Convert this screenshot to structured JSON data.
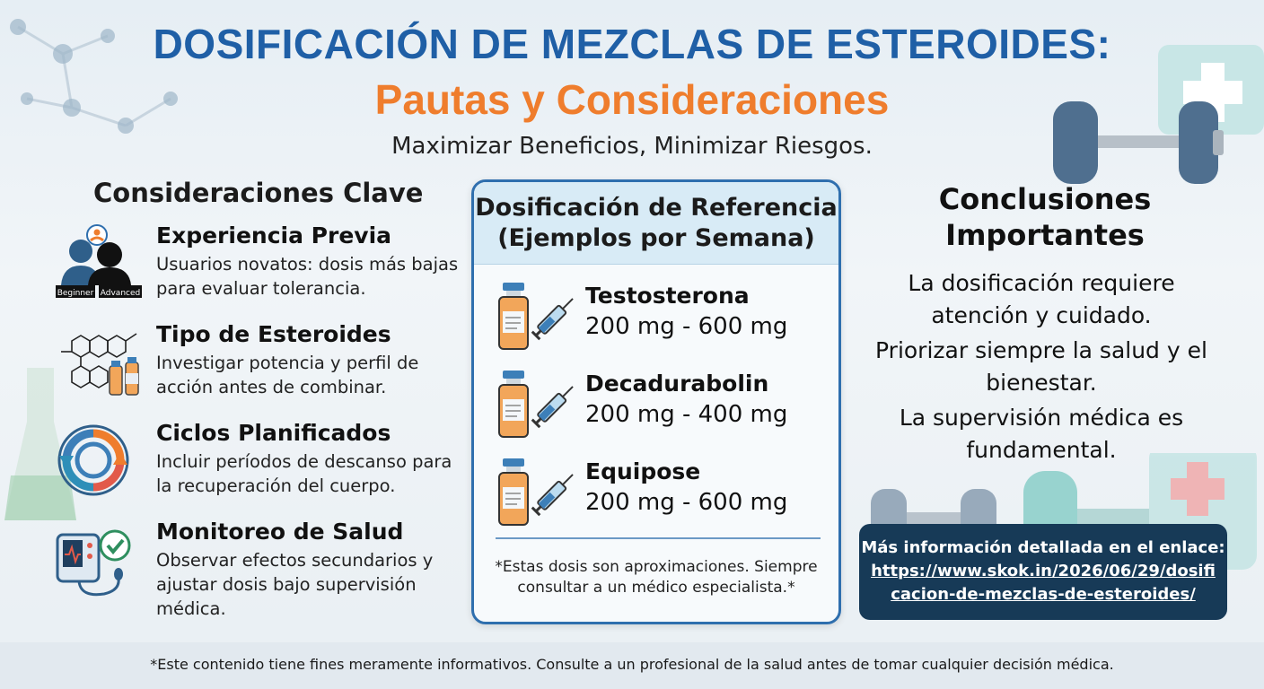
{
  "header": {
    "title_line1": "DOSIFICACIÓN DE MEZCLAS DE ESTEROIDES:",
    "title_line2": "Pautas y Consideraciones",
    "subtitle": "Maximizar Beneficios, Minimizar Riesgos."
  },
  "left": {
    "heading": "Consideraciones Clave",
    "items": [
      {
        "title": "Experiencia Previa",
        "desc": "Usuarios novatos: dosis más bajas para evaluar tolerancia.",
        "icon": "beginner-advanced-icon",
        "badge_left": "Beginner",
        "badge_right": "Advanced"
      },
      {
        "title": "Tipo de Esteroides",
        "desc": "Investigar potencia y perfil de acción antes de combinar.",
        "icon": "molecule-vials-icon"
      },
      {
        "title": "Ciclos Planificados",
        "desc": "Incluir períodos de descanso para la recuperación del cuerpo.",
        "icon": "cycle-arrows-icon"
      },
      {
        "title": "Monitoreo de Salud",
        "desc": "Observar efectos secundarios y ajustar dosis bajo supervisión médica.",
        "icon": "health-monitor-icon"
      }
    ]
  },
  "center": {
    "heading_line1": "Dosificación de Referencia",
    "heading_line2": "(Ejemplos por Semana)",
    "doses": [
      {
        "name": "Testosterona",
        "amount": "200 mg - 600 mg"
      },
      {
        "name": "Decadurabolin",
        "amount": "200 mg - 400 mg"
      },
      {
        "name": "Equipose",
        "amount": "200 mg - 600 mg"
      }
    ],
    "note": "*Estas dosis son aproximaciones. Siempre consultar a un médico especialista.*"
  },
  "right": {
    "heading_line1": "Conclusiones",
    "heading_line2": "Importantes",
    "lines": [
      "La dosificación requiere atención y cuidado.",
      "Priorizar siempre la salud y el bienestar.",
      "La supervisión médica es fundamental."
    ],
    "link_label": "Más información detallada en el enlace:",
    "link_url": "https://www.skok.in/2026/06/29/dosificacion-de-mezclas-de-esteroides/"
  },
  "footer": {
    "disclaimer": "*Este contenido tiene fines meramente informativos. Consulte a un profesional de la salud antes de tomar cualquier decisión médica."
  },
  "colors": {
    "title_blue": "#1f5fa6",
    "title_orange": "#ef7d2d",
    "box_border": "#2f6fae",
    "link_bg": "#173a57"
  }
}
